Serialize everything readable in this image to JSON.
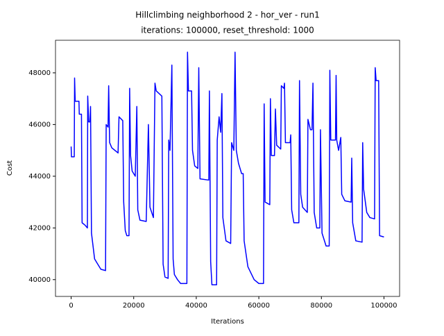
{
  "chart_data": {
    "type": "line",
    "title": "Hillclimbing neighborhood 2 - hor_ver - run1",
    "subtitle": "iterations: 100000, reset_threshold: 1000",
    "xlabel": "Iterations",
    "ylabel": "Cost",
    "xlim": [
      -5000,
      105000
    ],
    "ylim": [
      39350,
      49260
    ],
    "xticks": [
      0,
      20000,
      40000,
      60000,
      80000,
      100000
    ],
    "yticks": [
      40000,
      42000,
      44000,
      46000,
      48000
    ],
    "grid": false,
    "x": [
      0,
      100,
      1000,
      1100,
      1300,
      2500,
      2600,
      3300,
      3500,
      4500,
      5200,
      5300,
      5600,
      6000,
      6200,
      6500,
      7500,
      8500,
      9500,
      11000,
      11200,
      11800,
      12000,
      12300,
      13000,
      14000,
      15000,
      15300,
      16500,
      16800,
      17300,
      17800,
      18500,
      18700,
      19000,
      19500,
      20500,
      21000,
      21300,
      22000,
      24000,
      24700,
      25200,
      26300,
      26800,
      27200,
      29000,
      29400,
      30000,
      31000,
      31200,
      31600,
      32200,
      32600,
      33000,
      34000,
      35000,
      37000,
      37200,
      37500,
      38500,
      38800,
      39500,
      40500,
      40800,
      41200,
      44000,
      44200,
      44600,
      45000,
      46500,
      46700,
      47300,
      47800,
      48200,
      48500,
      49500,
      51000,
      51300,
      52000,
      52400,
      52800,
      53500,
      54500,
      55000,
      55300,
      56500,
      58500,
      60000,
      61500,
      61700,
      62000,
      63500,
      63700,
      64000,
      65000,
      65300,
      65700,
      67000,
      67200,
      68000,
      68200,
      68500,
      70000,
      70200,
      70500,
      71200,
      72800,
      73000,
      73400,
      74000,
      75500,
      75700,
      76500,
      77000,
      77300,
      77700,
      78500,
      79500,
      79700,
      80200,
      81500,
      82500,
      82700,
      83000,
      84500,
      84700,
      84900,
      85500,
      86200,
      86500,
      87500,
      89500,
      89700,
      90000,
      91000,
      93000,
      93200,
      93500,
      94500,
      95500,
      97000,
      97200,
      97500,
      98300,
      98600,
      100000
    ],
    "series": [
      {
        "name": "cost",
        "color": "#0000ff",
        "values": [
          45150,
          44750,
          44750,
          47800,
          46900,
          46900,
          46400,
          46400,
          42200,
          42100,
          42000,
          47100,
          46100,
          46100,
          46700,
          41800,
          40800,
          40600,
          40400,
          40350,
          46000,
          45900,
          47500,
          45300,
          45100,
          45000,
          44900,
          46300,
          46150,
          43000,
          41900,
          41700,
          41700,
          47400,
          44800,
          44200,
          44000,
          46700,
          42700,
          42300,
          42250,
          46000,
          42800,
          42400,
          47600,
          47300,
          47100,
          40600,
          40100,
          40050,
          45400,
          45000,
          48300,
          40800,
          40200,
          40000,
          39850,
          39850,
          48800,
          47300,
          47300,
          45000,
          44400,
          44300,
          48200,
          43900,
          43850,
          47300,
          40700,
          39800,
          39800,
          45400,
          46300,
          45700,
          47200,
          42400,
          41500,
          41400,
          45300,
          45000,
          48800,
          45000,
          44500,
          44100,
          44100,
          41500,
          40500,
          40000,
          39850,
          39850,
          46800,
          43000,
          42900,
          47000,
          44800,
          44800,
          46600,
          45200,
          45050,
          47500,
          47400,
          47600,
          45300,
          45300,
          45600,
          42700,
          42200,
          42200,
          47700,
          43300,
          42800,
          42600,
          46200,
          45800,
          45800,
          47600,
          42600,
          42000,
          42000,
          45800,
          41800,
          41300,
          41300,
          48100,
          45400,
          45400,
          47900,
          45400,
          45000,
          45500,
          43300,
          43050,
          43000,
          44700,
          42200,
          41500,
          41450,
          45300,
          43500,
          42600,
          42400,
          42350,
          48200,
          47700,
          47700,
          41700,
          41650
        ]
      }
    ]
  }
}
